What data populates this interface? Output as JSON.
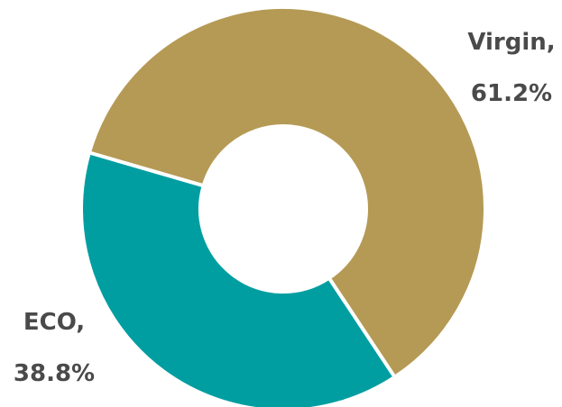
{
  "chart_data": {
    "type": "pie",
    "title": "",
    "donut": true,
    "slices": [
      {
        "label": "Virgin,",
        "value": 61.2,
        "value_label": "61.2%",
        "color": "#B59A55"
      },
      {
        "label": "ECO,",
        "value": 38.8,
        "value_label": "38.8%",
        "color": "#009EA1"
      }
    ],
    "legend": "none"
  }
}
